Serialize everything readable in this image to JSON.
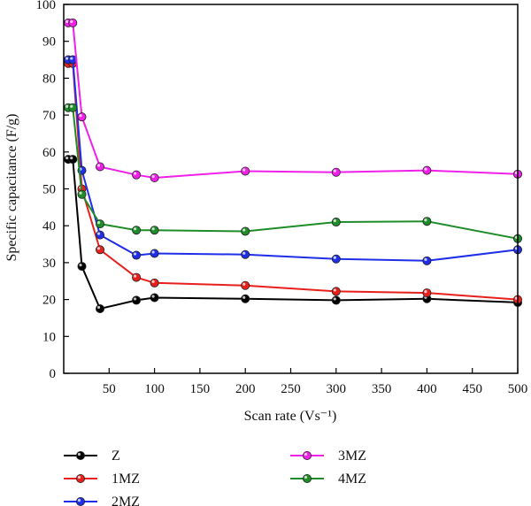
{
  "chart_data": {
    "type": "line",
    "xlabel": "Scan rate (Vs⁻¹)",
    "ylabel": "Specific capacitance (F/g)",
    "xlim": [
      0,
      500
    ],
    "ylim": [
      0,
      100
    ],
    "xticks": [
      50,
      100,
      150,
      200,
      250,
      300,
      350,
      400,
      450,
      500
    ],
    "yticks": [
      0,
      10,
      20,
      30,
      40,
      50,
      60,
      70,
      80,
      90,
      100
    ],
    "x": [
      5,
      10,
      20,
      40,
      80,
      100,
      200,
      300,
      400,
      500
    ],
    "grid": false,
    "legend_position": "bottom",
    "series": [
      {
        "name": "Z",
        "color": "#000000",
        "values": [
          58,
          58,
          29,
          17.5,
          19.8,
          20.5,
          20.2,
          19.8,
          20.2,
          19.2
        ]
      },
      {
        "name": "1MZ",
        "color": "#e8201c",
        "values": [
          84,
          84,
          50,
          33.5,
          26,
          24.5,
          23.8,
          22.2,
          21.8,
          20
        ]
      },
      {
        "name": "2MZ",
        "color": "#1f2ee8",
        "values": [
          85,
          85,
          55,
          37.5,
          32,
          32.5,
          32.2,
          31,
          30.5,
          33.5
        ]
      },
      {
        "name": "3MZ",
        "color": "#f020e8",
        "values": [
          95,
          95,
          69.5,
          56,
          53.8,
          53,
          54.8,
          54.5,
          55,
          54
        ]
      },
      {
        "name": "4MZ",
        "color": "#1f8c2a",
        "values": [
          72,
          72,
          48.5,
          40.5,
          38.8,
          38.8,
          38.5,
          41,
          41.2,
          36.5
        ]
      }
    ]
  }
}
